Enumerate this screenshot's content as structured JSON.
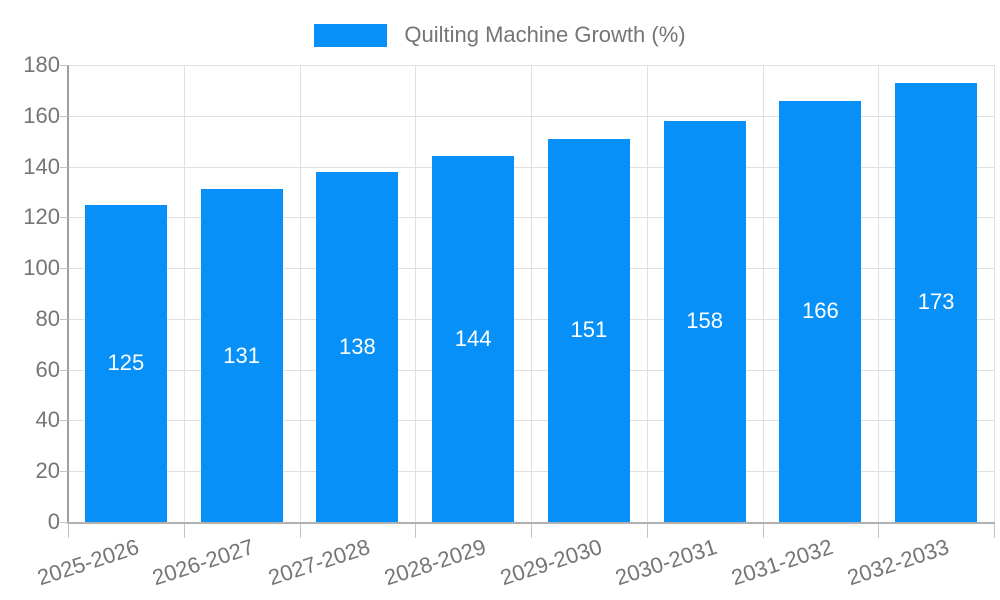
{
  "legend": {
    "label": "Quilting Machine Growth (%)"
  },
  "chart_data": {
    "type": "bar",
    "title": "Quilting Machine Growth (%)",
    "categories": [
      "2025-2026",
      "2026-2027",
      "2027-2028",
      "2028-2029",
      "2029-2030",
      "2030-2031",
      "2031-2032",
      "2032-2033"
    ],
    "series": [
      {
        "name": "Quilting Machine Growth (%)",
        "values": [
          125,
          131,
          138,
          144,
          151,
          158,
          166,
          173
        ]
      }
    ],
    "xlabel": "",
    "ylabel": "",
    "ylim": [
      0,
      180
    ],
    "yticks": [
      0,
      20,
      40,
      60,
      80,
      100,
      120,
      140,
      160,
      180
    ],
    "grid": "horizontal-and-vertical",
    "legend_position": "top-center",
    "bar_value_labels_visible": true,
    "x_label_rotation_deg": -18,
    "colors": {
      "bar": "#0690f8",
      "bar_label": "#ffffff",
      "axis_text": "#757575",
      "gridline": "#e0e0e0",
      "y_axis_line": "#9e9e9e",
      "x_axis_line": "#b0b0b0",
      "tick": "#c4c4c4",
      "background": "#ffffff"
    }
  }
}
